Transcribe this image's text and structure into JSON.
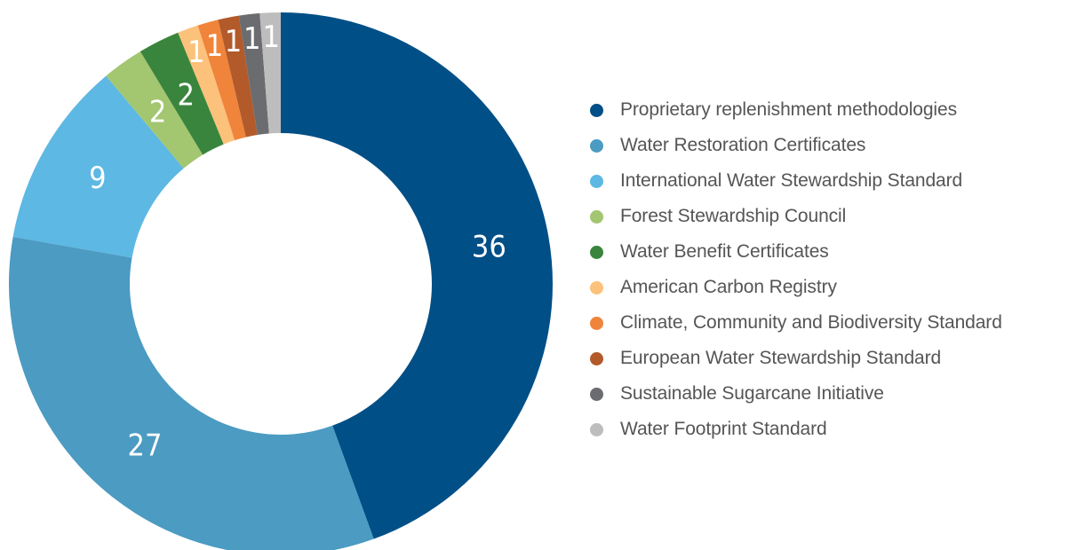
{
  "chart_data": {
    "type": "pie",
    "donut": true,
    "title": "",
    "start_angle_deg": 0,
    "direction": "clockwise",
    "legend_position": "right",
    "slices": [
      {
        "label": "Proprietary replenishment methodologies",
        "value": 36,
        "value_label": "36",
        "color": "#004f86"
      },
      {
        "label": "Water Restoration Certificates",
        "value": 27,
        "value_label": "27",
        "color": "#4b9bc2"
      },
      {
        "label": "International Water Stewardship Standard",
        "value": 9,
        "value_label": "9",
        "color": "#5db8e3"
      },
      {
        "label": "Forest Stewardship Council",
        "value": 2,
        "value_label": "2",
        "color": "#a3c670"
      },
      {
        "label": "Water Benefit Certificates",
        "value": 2,
        "value_label": "2",
        "color": "#3a853d"
      },
      {
        "label": "American Carbon Registry",
        "value": 1,
        "value_label": "1",
        "color": "#fcc17a"
      },
      {
        "label": "Climate, Community and Biodiversity Standard",
        "value": 1,
        "value_label": "1",
        "color": "#f0843a"
      },
      {
        "label": "European Water Stewardship Standard",
        "value": 1,
        "value_label": "1",
        "color": "#b35a2b"
      },
      {
        "label": "Sustainable Sugarcane Initiative",
        "value": 1,
        "value_label": "1",
        "color": "#6b6c70"
      },
      {
        "label": "Water Footprint Standard",
        "value": 1,
        "value_label": "1",
        "color": "#bdbdbd"
      }
    ]
  }
}
